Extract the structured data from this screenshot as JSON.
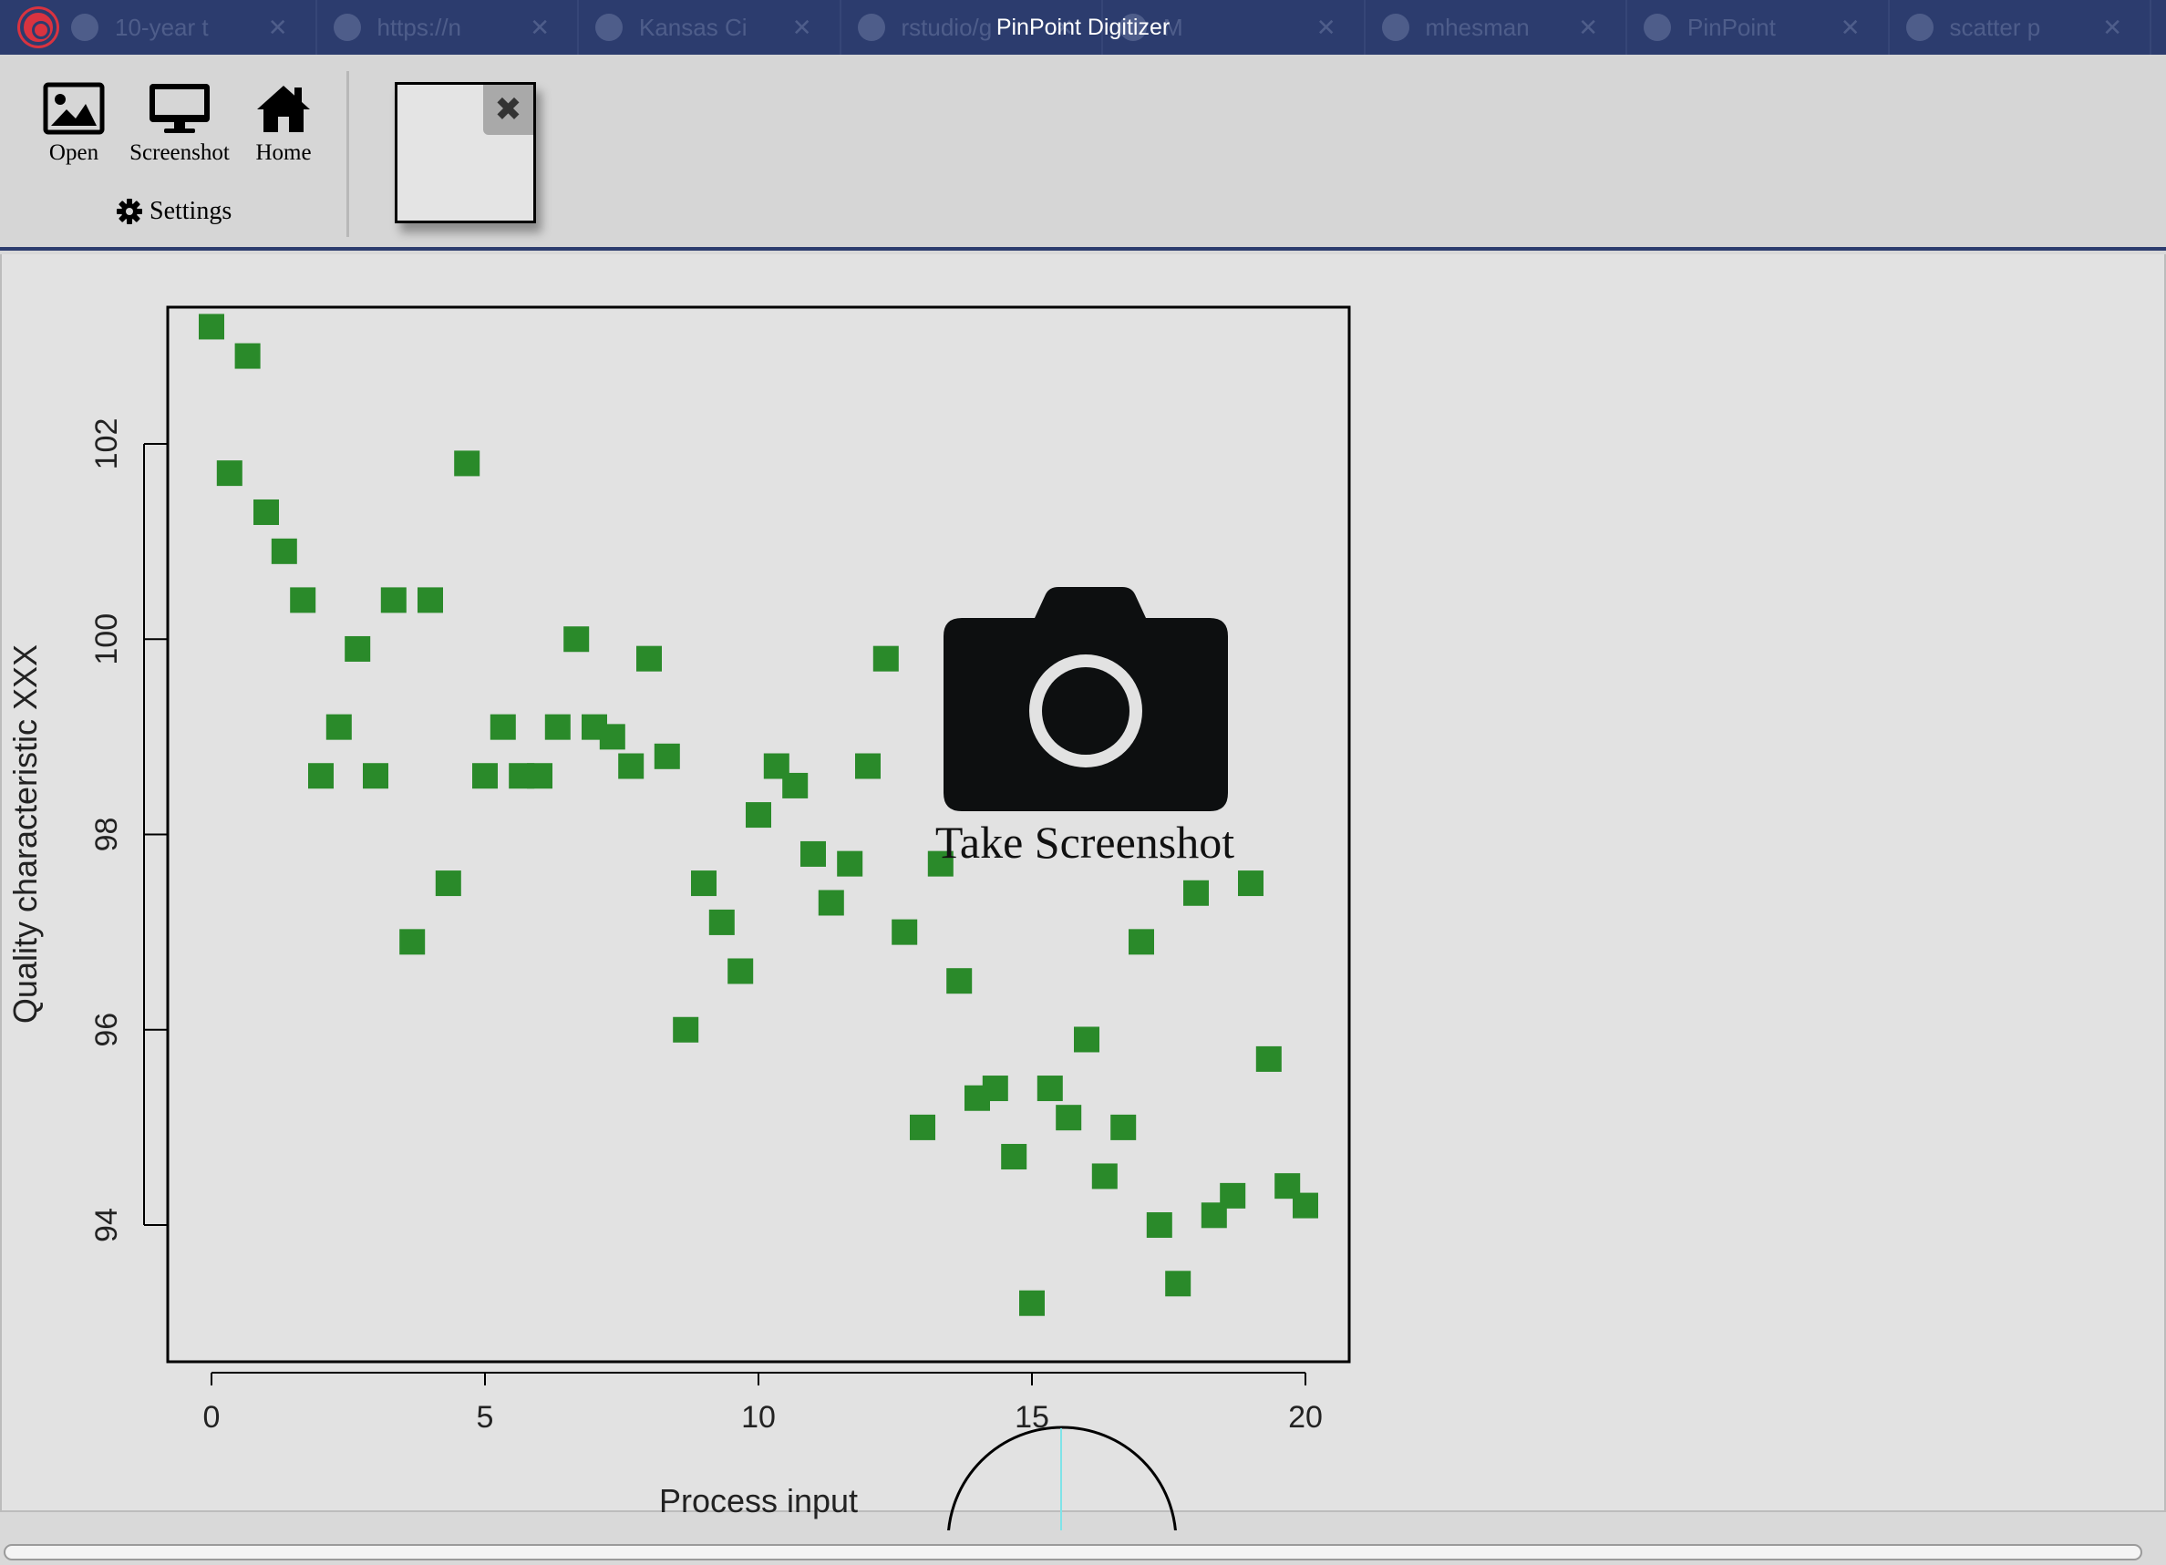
{
  "window": {
    "title": "PinPoint Digitizer",
    "background_tabs": [
      "10-year t",
      "https://n",
      "Kansas Ci",
      "rstudio/g",
      "M",
      "mhesman",
      "PinPoint",
      "scatter p"
    ]
  },
  "toolbar": {
    "open_label": "Open",
    "screenshot_label": "Screenshot",
    "home_label": "Home",
    "settings_label": "Settings",
    "icons": {
      "open": "image-icon",
      "screenshot": "monitor-icon",
      "home": "home-icon",
      "settings": "gear-icon",
      "close": "close-icon"
    }
  },
  "overlay": {
    "take_screenshot_label": "Take Screenshot",
    "icon": "camera-icon"
  },
  "colors": {
    "titlebar": "#2c3c6e",
    "points": "#2a8a2a",
    "plot_bg": "#e2e2e2"
  },
  "chart_data": {
    "type": "scatter",
    "title": "",
    "xlabel": "Process input",
    "ylabel": "Quality characteristic XXX",
    "xlim": [
      -0.8,
      20.8
    ],
    "ylim": [
      92.6,
      103.4
    ],
    "xticks": [
      0,
      5,
      10,
      15,
      20
    ],
    "yticks": [
      94,
      96,
      98,
      100,
      102
    ],
    "grid": false,
    "marker": "square",
    "series": [
      {
        "points": [
          [
            0.0,
            103.2
          ],
          [
            0.33,
            101.7
          ],
          [
            0.66,
            102.9
          ],
          [
            1.0,
            101.3
          ],
          [
            1.33,
            100.9
          ],
          [
            1.67,
            100.4
          ],
          [
            2.0,
            98.6
          ],
          [
            2.33,
            99.1
          ],
          [
            2.67,
            99.9
          ],
          [
            3.0,
            98.6
          ],
          [
            3.33,
            100.4
          ],
          [
            3.67,
            96.9
          ],
          [
            4.0,
            100.4
          ],
          [
            4.33,
            97.5
          ],
          [
            4.67,
            101.8
          ],
          [
            5.0,
            98.6
          ],
          [
            5.33,
            99.1
          ],
          [
            5.67,
            98.6
          ],
          [
            6.0,
            98.6
          ],
          [
            6.33,
            99.1
          ],
          [
            6.67,
            100.0
          ],
          [
            7.0,
            99.1
          ],
          [
            7.33,
            99.0
          ],
          [
            7.67,
            98.7
          ],
          [
            8.0,
            99.8
          ],
          [
            8.33,
            98.8
          ],
          [
            8.67,
            96.0
          ],
          [
            9.0,
            97.5
          ],
          [
            9.33,
            97.1
          ],
          [
            9.67,
            96.6
          ],
          [
            10.0,
            98.2
          ],
          [
            10.33,
            98.7
          ],
          [
            10.67,
            98.5
          ],
          [
            11.0,
            97.8
          ],
          [
            11.33,
            97.3
          ],
          [
            11.67,
            97.7
          ],
          [
            12.0,
            98.7
          ],
          [
            12.33,
            99.8
          ],
          [
            12.67,
            97.0
          ],
          [
            13.0,
            95.0
          ],
          [
            13.33,
            97.7
          ],
          [
            13.67,
            96.5
          ],
          [
            14.0,
            95.3
          ],
          [
            14.33,
            95.4
          ],
          [
            14.67,
            94.7
          ],
          [
            15.0,
            93.2
          ],
          [
            15.33,
            95.4
          ],
          [
            15.67,
            95.1
          ],
          [
            16.0,
            95.9
          ],
          [
            16.33,
            94.5
          ],
          [
            16.67,
            95.0
          ],
          [
            17.0,
            96.9
          ],
          [
            17.33,
            94.0
          ],
          [
            17.67,
            93.4
          ],
          [
            18.0,
            97.4
          ],
          [
            18.33,
            94.1
          ],
          [
            18.67,
            94.3
          ],
          [
            19.0,
            97.5
          ],
          [
            19.33,
            95.7
          ],
          [
            19.67,
            94.4
          ],
          [
            20.0,
            94.2
          ]
        ]
      }
    ]
  }
}
